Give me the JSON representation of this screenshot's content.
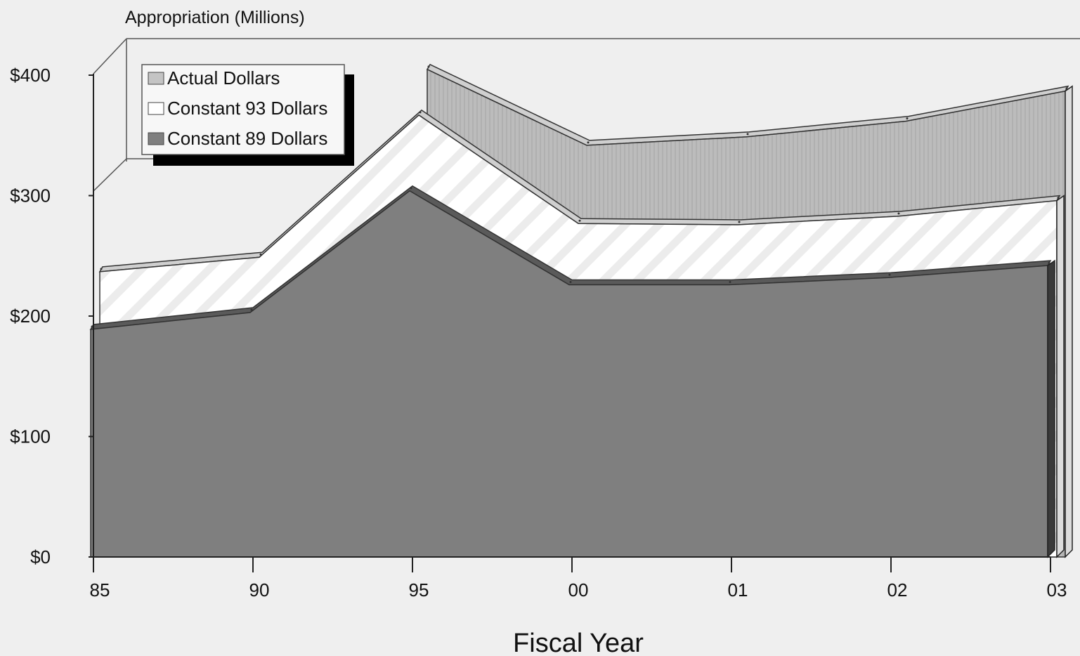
{
  "chart_data": {
    "type": "area",
    "ylabel": "Appropriation (Millions)",
    "xlabel": "Fiscal Year",
    "categories": [
      "85",
      "90",
      "95",
      "00",
      "01",
      "02",
      "03"
    ],
    "y_ticks": [
      "$0",
      "$100",
      "$200",
      "$300",
      "$400"
    ],
    "ylim": [
      0,
      400
    ],
    "grid": false,
    "legend_position": "top-left",
    "series": [
      {
        "name": "Actual Dollars",
        "values": [
          null,
          null,
          403,
          340,
          347,
          360,
          385
        ],
        "color": "#bdbdbd"
      },
      {
        "name": "Constant 93 Dollars",
        "values": [
          238,
          250,
          368,
          278,
          277,
          284,
          297
        ],
        "color": "#ffffff"
      },
      {
        "name": "Constant 89 Dollars",
        "values": [
          193,
          207,
          308,
          230,
          230,
          236,
          246
        ],
        "color": "#7f7f7f"
      }
    ]
  }
}
